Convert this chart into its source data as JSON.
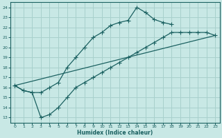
{
  "bg_color": "#c8e8e5",
  "grid_color": "#a8d0cc",
  "line_color": "#1a6060",
  "xlabel": "Humidex (Indice chaleur)",
  "xlim": [
    -0.5,
    23.5
  ],
  "ylim": [
    12.5,
    24.5
  ],
  "xticks": [
    0,
    1,
    2,
    3,
    4,
    5,
    6,
    7,
    8,
    9,
    10,
    11,
    12,
    13,
    14,
    15,
    16,
    17,
    18,
    19,
    20,
    21,
    22,
    23
  ],
  "yticks": [
    13,
    14,
    15,
    16,
    17,
    18,
    19,
    20,
    21,
    22,
    23,
    24
  ],
  "line1_x": [
    0,
    1,
    2,
    3,
    4,
    5,
    6,
    7,
    8,
    9,
    10,
    11,
    12,
    13,
    14,
    15,
    16,
    17,
    18
  ],
  "line1_y": [
    16.2,
    15.7,
    15.5,
    15.5,
    16.0,
    16.5,
    18.0,
    19.0,
    20.0,
    21.0,
    21.5,
    22.2,
    22.5,
    22.7,
    24.0,
    23.5,
    22.8,
    22.5,
    22.3
  ],
  "line2_x": [
    0,
    23
  ],
  "line2_y": [
    16.2,
    21.2
  ],
  "line3_x": [
    0,
    1,
    2,
    3,
    4,
    5,
    6,
    7,
    8,
    9,
    10,
    11,
    12,
    13,
    14,
    15,
    16,
    17,
    18,
    19,
    20,
    21,
    22,
    23
  ],
  "line3_y": [
    16.2,
    15.7,
    15.5,
    13.0,
    13.3,
    14.0,
    15.0,
    16.0,
    16.5,
    17.0,
    17.5,
    18.0,
    18.5,
    19.0,
    19.5,
    20.0,
    20.5,
    21.0,
    21.5,
    21.5,
    21.5,
    21.5,
    21.5,
    21.2
  ]
}
